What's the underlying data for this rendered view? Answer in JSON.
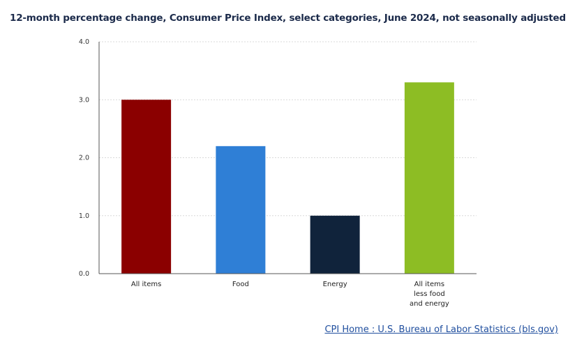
{
  "chart_data": {
    "type": "bar",
    "title": "12-month percentage change, Consumer Price Index, select categories, June 2024, not seasonally adjusted",
    "categories": [
      [
        "All items"
      ],
      [
        "Food"
      ],
      [
        "Energy"
      ],
      [
        "All items",
        "less food",
        "and energy"
      ]
    ],
    "values": [
      3.0,
      2.2,
      1.0,
      3.3
    ],
    "colors": [
      "#8b0000",
      "#2f7fd6",
      "#10233b",
      "#8dbd24"
    ],
    "ylim": [
      0,
      4
    ],
    "yticks": [
      "0.0",
      "1.0",
      "2.0",
      "3.0",
      "4.0"
    ],
    "grid": true,
    "legend": "none"
  },
  "source_link": "CPI Home : U.S. Bureau of Labor Statistics (bls.gov)"
}
